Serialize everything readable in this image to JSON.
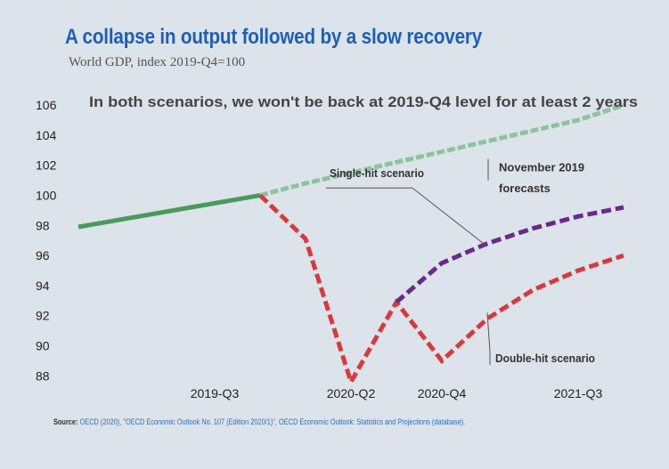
{
  "header": {
    "title": "A collapse in output followed by a slow recovery",
    "subtitle": "World GDP, index 2019-Q4=100"
  },
  "footer": {
    "source_lead": "Source:",
    "source_citation": "OECD (2020), \"OECD Economic Outlook No. 107 (Edition 2020/1)\", OECD Economic Outlook: Statistics and Projections (database)."
  },
  "colors": {
    "history": "#4a9a5c",
    "forecast": "#8cc49b",
    "double_hit": "#d63a3e",
    "single_hit": "#6a2a8a",
    "background": "#dce3ea"
  },
  "chart_data": {
    "type": "line",
    "title": "A collapse in output followed by a slow recovery",
    "subtitle": "World GDP, index 2019-Q4=100",
    "ylim": [
      87,
      106
    ],
    "yticks": [
      88,
      90,
      92,
      94,
      96,
      98,
      100,
      102,
      104,
      106
    ],
    "x": [
      "2018-Q4",
      "2019-Q1",
      "2019-Q2",
      "2019-Q3",
      "2019-Q4",
      "2020-Q1",
      "2020-Q2",
      "2020-Q3",
      "2020-Q4",
      "2021-Q1",
      "2021-Q2",
      "2021-Q3",
      "2021-Q4"
    ],
    "xticks": [
      "2019-Q3",
      "2020-Q2",
      "2020-Q4",
      "2021-Q3"
    ],
    "series": [
      {
        "key": "history",
        "style": "solid",
        "points": [
          [
            "2018-Q4",
            97.9
          ],
          [
            "2019-Q4",
            100.0
          ]
        ]
      },
      {
        "key": "forecast",
        "name": "November 2019 forecasts",
        "style": "dashed",
        "points": [
          [
            "2019-Q4",
            100.0
          ],
          [
            "2020-Q1",
            100.8
          ],
          [
            "2020-Q2",
            101.5
          ],
          [
            "2020-Q3",
            102.2
          ],
          [
            "2020-Q4",
            102.9
          ],
          [
            "2021-Q1",
            103.6
          ],
          [
            "2021-Q2",
            104.3
          ],
          [
            "2021-Q3",
            105.0
          ],
          [
            "2021-Q4",
            106.0
          ]
        ]
      },
      {
        "key": "double_hit",
        "name": "Double-hit scenario",
        "style": "dashed",
        "points": [
          [
            "2019-Q4",
            100.0
          ],
          [
            "2020-Q1",
            97.1
          ],
          [
            "2020-Q2",
            87.6
          ],
          [
            "2020-Q3",
            92.9
          ],
          [
            "2020-Q4",
            89.0
          ],
          [
            "2021-Q1",
            91.8
          ],
          [
            "2021-Q2",
            93.7
          ],
          [
            "2021-Q3",
            95.0
          ],
          [
            "2021-Q4",
            96.0
          ]
        ]
      },
      {
        "key": "single_hit",
        "name": "Single-hit scenario",
        "style": "dashed",
        "points": [
          [
            "2020-Q3",
            92.9
          ],
          [
            "2020-Q4",
            95.5
          ],
          [
            "2021-Q1",
            96.8
          ],
          [
            "2021-Q2",
            97.8
          ],
          [
            "2021-Q3",
            98.6
          ],
          [
            "2021-Q4",
            99.2
          ]
        ]
      }
    ],
    "annotations": [
      {
        "text": "In both scenarios, we won't be back at 2019-Q4 level for at least 2 years",
        "at": [
          "2018-Q4",
          106.0
        ]
      },
      {
        "text": "Single-hit scenario",
        "target_series": "single_hit",
        "at": [
          "2020-Q3",
          101.2
        ],
        "target": [
          "2021-Q1",
          96.6
        ]
      },
      {
        "text": "November 2019",
        "at": [
          "2021-Q2",
          101.6
        ]
      },
      {
        "text": "forecasts",
        "at": [
          "2021-Q2",
          100.2
        ]
      },
      {
        "text": "Double-hit scenario",
        "target_series": "double_hit",
        "at": [
          "2021-Q2",
          88.9
        ],
        "target": [
          "2021-Q1",
          92.2
        ]
      }
    ],
    "grid": false,
    "legend": "none"
  }
}
